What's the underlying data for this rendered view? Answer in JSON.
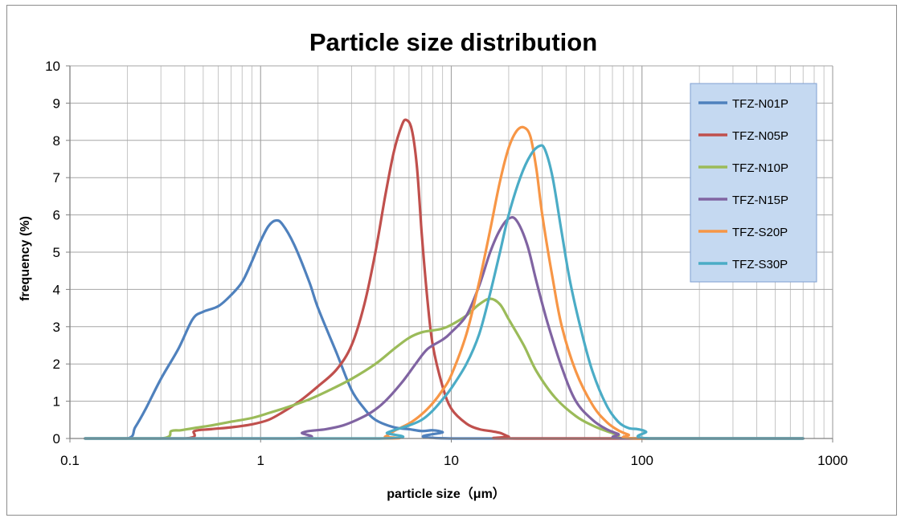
{
  "chart_data": {
    "type": "line",
    "title": "Particle size distribution",
    "xlabel": "particle size（μm）",
    "ylabel": "frequency (%)",
    "xscale": "log",
    "xlim": [
      0.1,
      1000
    ],
    "ylim": [
      0,
      10
    ],
    "x_ticks": [
      0.1,
      1,
      10,
      100,
      1000
    ],
    "x_tick_labels": [
      "0.1",
      "1",
      "10",
      "100",
      "1000"
    ],
    "y_ticks": [
      0,
      1,
      2,
      3,
      4,
      5,
      6,
      7,
      8,
      9,
      10
    ],
    "y_tick_labels": [
      "0",
      "1",
      "2",
      "3",
      "4",
      "5",
      "6",
      "7",
      "8",
      "9",
      "10"
    ],
    "grid": "on (major and minor log gridlines)",
    "legend_position": "top-right",
    "series": [
      {
        "name": "TFZ-N01P",
        "color": "#4f81bd",
        "points": [
          [
            0.12,
            0
          ],
          [
            0.2,
            0
          ],
          [
            0.22,
            0.3
          ],
          [
            0.25,
            0.8
          ],
          [
            0.3,
            1.6
          ],
          [
            0.37,
            2.4
          ],
          [
            0.44,
            3.2
          ],
          [
            0.5,
            3.4
          ],
          [
            0.6,
            3.55
          ],
          [
            0.7,
            3.85
          ],
          [
            0.8,
            4.2
          ],
          [
            0.9,
            4.75
          ],
          [
            1.0,
            5.3
          ],
          [
            1.1,
            5.7
          ],
          [
            1.2,
            5.85
          ],
          [
            1.3,
            5.75
          ],
          [
            1.5,
            5.2
          ],
          [
            1.8,
            4.2
          ],
          [
            2.0,
            3.5
          ],
          [
            2.5,
            2.3
          ],
          [
            3.0,
            1.3
          ],
          [
            3.5,
            0.8
          ],
          [
            4.0,
            0.5
          ],
          [
            5.0,
            0.3
          ],
          [
            6.0,
            0.25
          ],
          [
            7.0,
            0.2
          ],
          [
            8.0,
            0.22
          ],
          [
            9.0,
            0.17
          ],
          [
            10,
            0
          ],
          [
            700,
            0
          ]
        ]
      },
      {
        "name": "TFZ-N05P",
        "color": "#c0504d",
        "points": [
          [
            0.12,
            0
          ],
          [
            0.4,
            0
          ],
          [
            0.45,
            0.2
          ],
          [
            0.55,
            0.25
          ],
          [
            0.7,
            0.3
          ],
          [
            0.9,
            0.38
          ],
          [
            1.1,
            0.5
          ],
          [
            1.3,
            0.7
          ],
          [
            1.6,
            1.0
          ],
          [
            2.0,
            1.4
          ],
          [
            2.5,
            1.85
          ],
          [
            3.0,
            2.5
          ],
          [
            3.5,
            3.6
          ],
          [
            4.0,
            5.0
          ],
          [
            4.5,
            6.5
          ],
          [
            5.0,
            7.7
          ],
          [
            5.5,
            8.4
          ],
          [
            5.8,
            8.55
          ],
          [
            6.2,
            8.3
          ],
          [
            6.6,
            7.3
          ],
          [
            7.0,
            5.5
          ],
          [
            7.5,
            3.7
          ],
          [
            8.0,
            2.5
          ],
          [
            9.0,
            1.4
          ],
          [
            10,
            0.8
          ],
          [
            12,
            0.4
          ],
          [
            14,
            0.25
          ],
          [
            16,
            0.2
          ],
          [
            18,
            0.15
          ],
          [
            20,
            0.05
          ],
          [
            22,
            0
          ],
          [
            700,
            0
          ]
        ]
      },
      {
        "name": "TFZ-N10P",
        "color": "#9bbb59",
        "points": [
          [
            0.12,
            0
          ],
          [
            0.3,
            0
          ],
          [
            0.34,
            0.2
          ],
          [
            0.38,
            0.22
          ],
          [
            0.45,
            0.28
          ],
          [
            0.55,
            0.35
          ],
          [
            0.7,
            0.45
          ],
          [
            0.9,
            0.55
          ],
          [
            1.1,
            0.68
          ],
          [
            1.4,
            0.85
          ],
          [
            1.8,
            1.05
          ],
          [
            2.3,
            1.3
          ],
          [
            3.0,
            1.6
          ],
          [
            4.0,
            2.0
          ],
          [
            5.0,
            2.4
          ],
          [
            6.0,
            2.7
          ],
          [
            7.0,
            2.85
          ],
          [
            8.0,
            2.9
          ],
          [
            9.0,
            2.95
          ],
          [
            10,
            3.05
          ],
          [
            12,
            3.3
          ],
          [
            14,
            3.6
          ],
          [
            16,
            3.75
          ],
          [
            18,
            3.6
          ],
          [
            20,
            3.2
          ],
          [
            24,
            2.5
          ],
          [
            28,
            1.8
          ],
          [
            35,
            1.1
          ],
          [
            45,
            0.6
          ],
          [
            55,
            0.35
          ],
          [
            65,
            0.2
          ],
          [
            75,
            0.1
          ],
          [
            90,
            0
          ],
          [
            700,
            0
          ]
        ]
      },
      {
        "name": "TFZ-N15P",
        "color": "#8064a2",
        "points": [
          [
            0.12,
            0
          ],
          [
            1.5,
            0
          ],
          [
            1.65,
            0.15
          ],
          [
            1.8,
            0.2
          ],
          [
            2.2,
            0.25
          ],
          [
            2.7,
            0.35
          ],
          [
            3.2,
            0.5
          ],
          [
            3.8,
            0.7
          ],
          [
            4.5,
            1.0
          ],
          [
            5.5,
            1.5
          ],
          [
            6.5,
            2.0
          ],
          [
            7.5,
            2.4
          ],
          [
            9.0,
            2.65
          ],
          [
            10,
            2.85
          ],
          [
            12,
            3.3
          ],
          [
            14,
            4.1
          ],
          [
            16,
            5.0
          ],
          [
            18,
            5.6
          ],
          [
            20,
            5.9
          ],
          [
            22,
            5.85
          ],
          [
            25,
            5.2
          ],
          [
            28,
            4.2
          ],
          [
            32,
            3.1
          ],
          [
            38,
            1.9
          ],
          [
            45,
            1.0
          ],
          [
            55,
            0.5
          ],
          [
            65,
            0.25
          ],
          [
            75,
            0.12
          ],
          [
            85,
            0
          ],
          [
            700,
            0
          ]
        ]
      },
      {
        "name": "TFZ-S20P",
        "color": "#f79646",
        "points": [
          [
            0.12,
            0
          ],
          [
            4.0,
            0
          ],
          [
            4.5,
            0.05
          ],
          [
            5.0,
            0.2
          ],
          [
            6.0,
            0.4
          ],
          [
            7.0,
            0.65
          ],
          [
            8.0,
            0.95
          ],
          [
            9.0,
            1.3
          ],
          [
            10,
            1.7
          ],
          [
            12,
            2.8
          ],
          [
            14,
            4.2
          ],
          [
            16,
            5.6
          ],
          [
            18,
            6.9
          ],
          [
            20,
            7.8
          ],
          [
            22,
            8.25
          ],
          [
            24,
            8.35
          ],
          [
            26,
            8.1
          ],
          [
            28,
            7.2
          ],
          [
            30,
            6.0
          ],
          [
            34,
            4.3
          ],
          [
            38,
            3.0
          ],
          [
            45,
            1.8
          ],
          [
            55,
            0.9
          ],
          [
            65,
            0.45
          ],
          [
            75,
            0.22
          ],
          [
            85,
            0.1
          ],
          [
            95,
            0
          ],
          [
            700,
            0
          ]
        ]
      },
      {
        "name": "TFZ-S30P",
        "color": "#4bacc6",
        "points": [
          [
            0.12,
            0
          ],
          [
            4.2,
            0
          ],
          [
            4.6,
            0.15
          ],
          [
            5.2,
            0.25
          ],
          [
            6.0,
            0.35
          ],
          [
            7.0,
            0.5
          ],
          [
            8.0,
            0.75
          ],
          [
            9.0,
            1.05
          ],
          [
            10,
            1.35
          ],
          [
            12,
            2.0
          ],
          [
            14,
            2.8
          ],
          [
            16,
            3.9
          ],
          [
            18,
            5.0
          ],
          [
            20,
            6.0
          ],
          [
            23,
            7.0
          ],
          [
            26,
            7.6
          ],
          [
            29,
            7.85
          ],
          [
            31,
            7.75
          ],
          [
            34,
            7.0
          ],
          [
            38,
            5.5
          ],
          [
            42,
            4.2
          ],
          [
            48,
            2.9
          ],
          [
            55,
            1.8
          ],
          [
            65,
            0.9
          ],
          [
            75,
            0.45
          ],
          [
            85,
            0.28
          ],
          [
            95,
            0.25
          ],
          [
            105,
            0.18
          ],
          [
            110,
            0
          ],
          [
            700,
            0
          ]
        ]
      }
    ]
  }
}
